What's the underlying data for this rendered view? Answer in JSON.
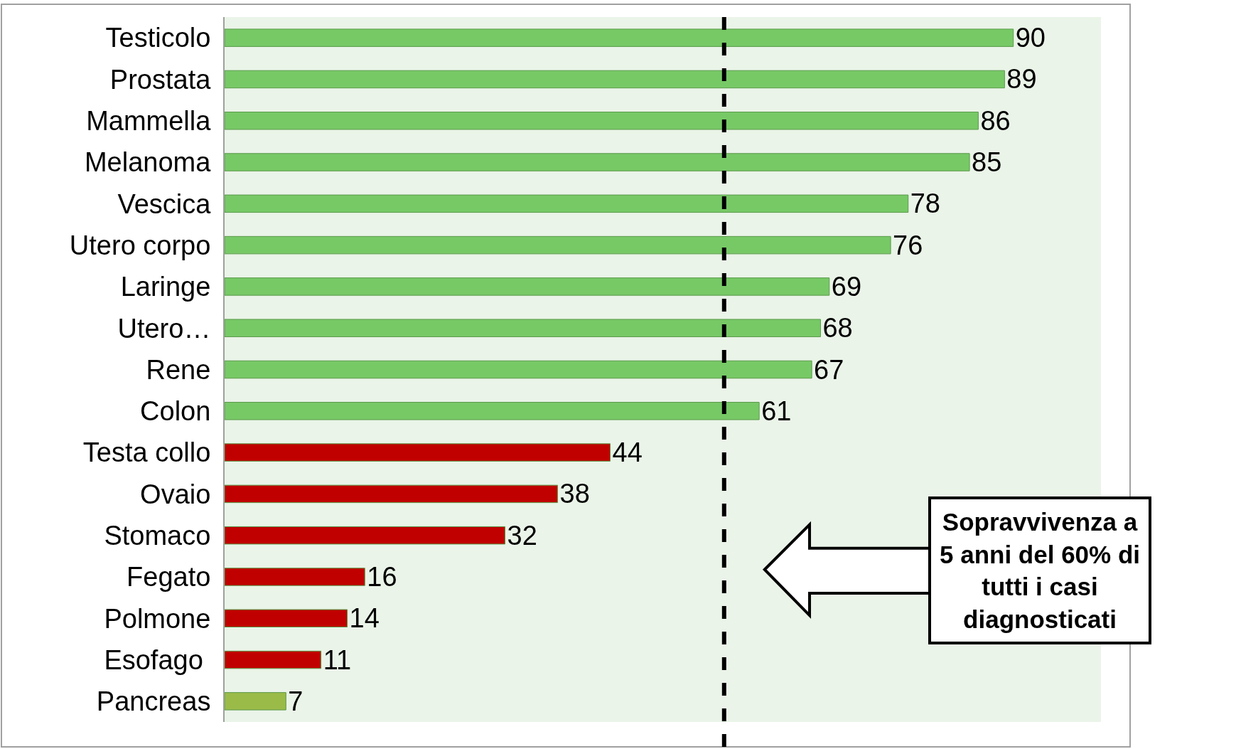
{
  "chart_data": {
    "type": "bar",
    "orientation": "horizontal",
    "categories": [
      "Testicolo",
      "Prostata",
      "Mammella",
      "Melanoma",
      "Vescica",
      "Utero corpo",
      "Laringe",
      "Utero…",
      "Rene",
      "Colon",
      "Testa collo",
      "Ovaio",
      "Stomaco",
      "Fegato",
      "Polmone",
      "Esofago ",
      "Pancreas"
    ],
    "values": [
      90,
      89,
      86,
      85,
      78,
      76,
      69,
      68,
      67,
      61,
      44,
      38,
      32,
      16,
      14,
      11,
      7
    ],
    "colors": [
      "#77c966",
      "#77c966",
      "#77c966",
      "#77c966",
      "#77c966",
      "#77c966",
      "#77c966",
      "#77c966",
      "#77c966",
      "#77c966",
      "#c00000",
      "#c00000",
      "#c00000",
      "#c00000",
      "#c00000",
      "#c00000",
      "#9bbb48"
    ],
    "data_labels": true,
    "ref_lines": [
      {
        "axis": "x",
        "value": 57,
        "color": "#000000",
        "line_style": "dashed"
      }
    ],
    "annotations": [
      "Sopravvivenza a\n5 anni del 60% di\ntutti i casi\ndiagnosticati"
    ],
    "grid": false,
    "legend": false
  }
}
